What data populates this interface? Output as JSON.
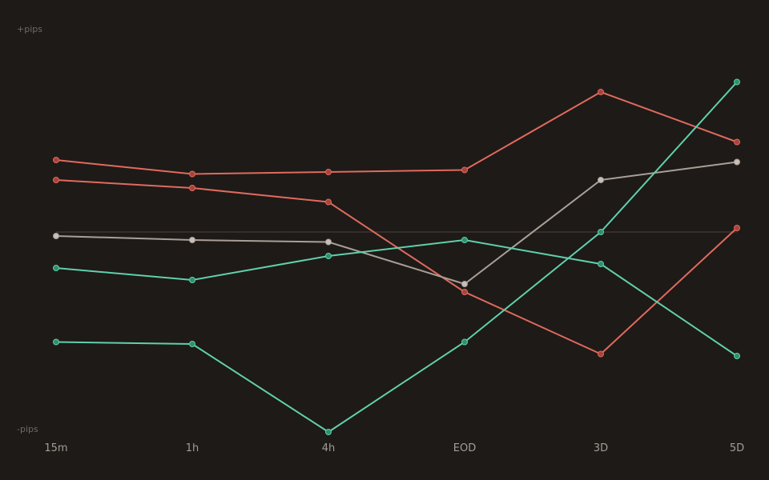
{
  "chart_data": {
    "type": "line",
    "ylabel_top": "+pips",
    "ylabel_bottom": "-pips",
    "categories": [
      "15m",
      "1h",
      "4h",
      "EOD",
      "3D",
      "5D"
    ],
    "ylim": [
      -1,
      1
    ],
    "zero_line": true,
    "grid": false,
    "legend": "none",
    "colors": {
      "background": "#1e1a17",
      "zero_line": "#3a3531",
      "red": "#e06a5e",
      "red_marker": "#a8433c",
      "gray": "#a8a098",
      "gray_marker": "#c8c0b8",
      "green": "#5fd0ad",
      "green_marker": "#2f8f6f"
    },
    "series": [
      {
        "color": "red",
        "values": [
          0.36,
          0.29,
          0.3,
          0.31,
          0.7,
          0.45
        ]
      },
      {
        "color": "red",
        "values": [
          0.26,
          0.22,
          0.15,
          -0.3,
          -0.61,
          0.02
        ]
      },
      {
        "color": "gray",
        "values": [
          -0.02,
          -0.04,
          -0.05,
          -0.26,
          0.26,
          0.35
        ]
      },
      {
        "color": "green",
        "values": [
          -0.18,
          -0.24,
          -0.12,
          -0.04,
          -0.16,
          -0.62
        ]
      },
      {
        "color": "green",
        "values": [
          -0.55,
          -0.56,
          -1.0,
          -0.55,
          0.0,
          0.75
        ]
      }
    ]
  }
}
